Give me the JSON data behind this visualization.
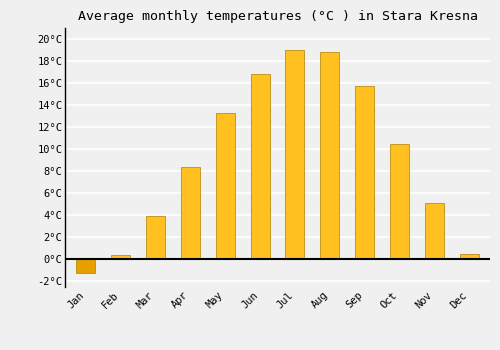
{
  "title": "Average monthly temperatures (°C ) in Stara Kresna",
  "months": [
    "Jan",
    "Feb",
    "Mar",
    "Apr",
    "May",
    "Jun",
    "Jul",
    "Aug",
    "Sep",
    "Oct",
    "Nov",
    "Dec"
  ],
  "values": [
    -1.2,
    0.4,
    3.9,
    8.4,
    13.3,
    16.8,
    19.0,
    18.8,
    15.7,
    10.5,
    5.1,
    0.5
  ],
  "bar_color_positive": "#FFC020",
  "bar_color_negative": "#E8A000",
  "bar_edge_color": "#B08000",
  "background_color": "#F0F0F0",
  "plot_bg_color": "#F0F0F0",
  "grid_color": "#FFFFFF",
  "ylim": [
    -2.5,
    21.0
  ],
  "yticks": [
    -2,
    0,
    2,
    4,
    6,
    8,
    10,
    12,
    14,
    16,
    18,
    20
  ],
  "title_fontsize": 9.5,
  "tick_fontsize": 7.5,
  "bar_width": 0.55
}
